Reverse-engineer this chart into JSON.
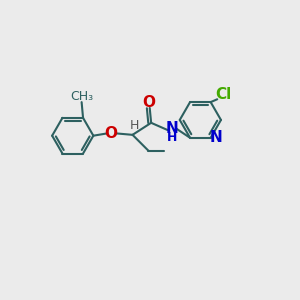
{
  "bg_color": "#ebebeb",
  "bond_color": "#2d6060",
  "bond_width": 1.5,
  "atom_colors": {
    "O": "#cc0000",
    "N": "#0000cc",
    "Cl": "#44aa00",
    "C": "#2d6060",
    "H": "#555555"
  },
  "fontsize_large": 11,
  "fontsize_small": 9
}
